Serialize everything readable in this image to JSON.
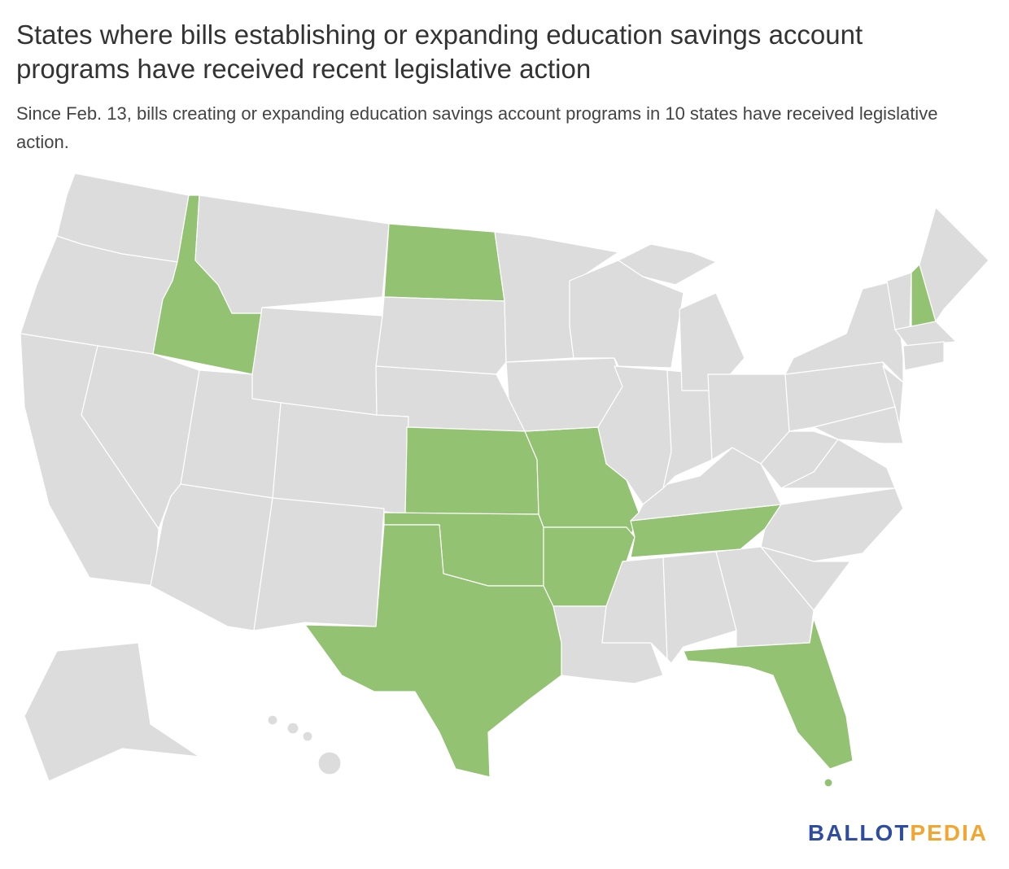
{
  "header": {
    "title": "States where bills establishing or expanding education savings account programs have received recent legislative action",
    "subtitle": "Since Feb. 13, bills creating or expanding education savings account programs in 10 states have received legislative action."
  },
  "map": {
    "colors": {
      "selected": "#93c272",
      "other": "#dcdcdc",
      "border": "#ffffff"
    }
  },
  "logo": {
    "part1": "BALLOT",
    "part1_color": "#2e4ca0",
    "part2": "PEDIA",
    "part2_color": "#f2a631"
  }
}
